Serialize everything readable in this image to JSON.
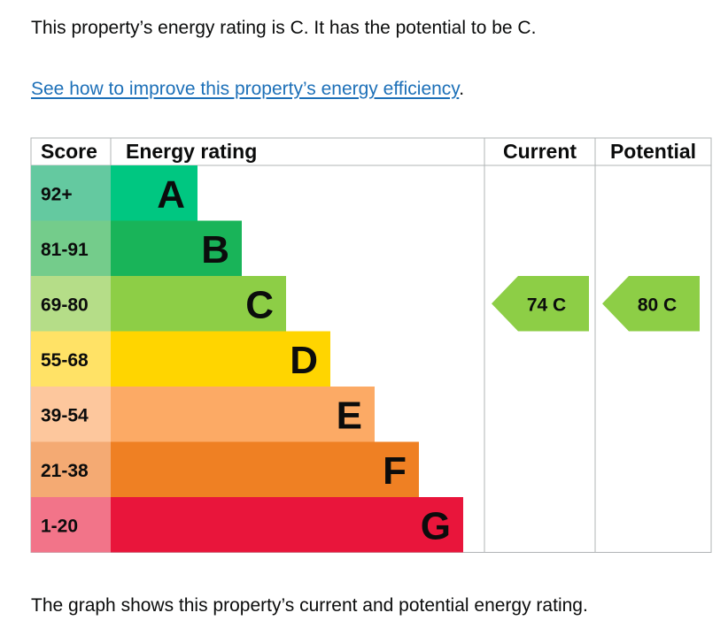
{
  "intro_text": "This property’s energy rating is C. It has the potential to be C.",
  "link": {
    "text": "See how to improve this property’s energy efficiency",
    "trailing": "."
  },
  "footer_text": "The graph shows this property’s current and potential energy rating.",
  "chart_data": {
    "type": "bar",
    "headers": {
      "score": "Score",
      "rating": "Energy rating",
      "current": "Current",
      "potential": "Potential"
    },
    "bands": [
      {
        "letter": "A",
        "range": "92+",
        "min": 92,
        "max": 100,
        "color": "#00c781",
        "score_bg": "#64c9a0"
      },
      {
        "letter": "B",
        "range": "81-91",
        "min": 81,
        "max": 91,
        "color": "#19b459",
        "score_bg": "#74cc8b"
      },
      {
        "letter": "C",
        "range": "69-80",
        "min": 69,
        "max": 80,
        "color": "#8dce46",
        "score_bg": "#b5dd88"
      },
      {
        "letter": "D",
        "range": "55-68",
        "min": 55,
        "max": 68,
        "color": "#ffd500",
        "score_bg": "#ffe266"
      },
      {
        "letter": "E",
        "range": "39-54",
        "min": 39,
        "max": 54,
        "color": "#fcaa65",
        "score_bg": "#fdc79d"
      },
      {
        "letter": "F",
        "range": "21-38",
        "min": 21,
        "max": 38,
        "color": "#ef8023",
        "score_bg": "#f4aa73"
      },
      {
        "letter": "G",
        "range": "1-20",
        "min": 1,
        "max": 20,
        "color": "#e9153b",
        "score_bg": "#f27489"
      }
    ],
    "current": {
      "value": 74,
      "letter": "C",
      "label": "74 C",
      "color": "#8dce46"
    },
    "potential": {
      "value": 80,
      "letter": "C",
      "label": "80 C",
      "color": "#8dce46"
    }
  }
}
